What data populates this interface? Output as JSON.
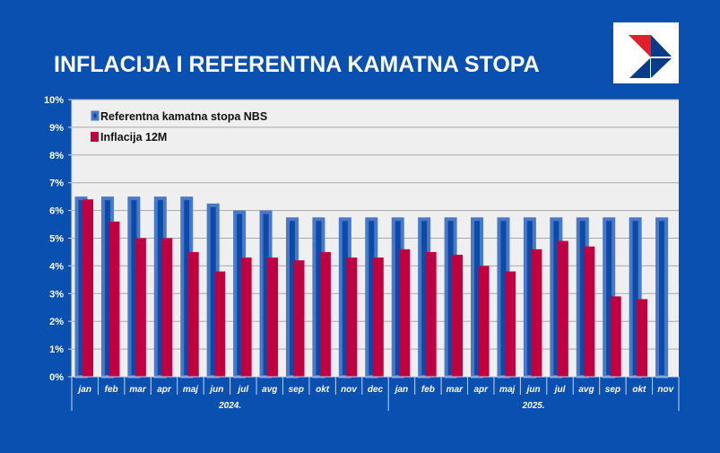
{
  "title": "INFLACIJA I REFERENTNA KAMATNA STOPA",
  "logo": "NBS logo",
  "chart_data": {
    "type": "bar",
    "title": "INFLACIJA I REFERENTNA KAMATNA STOPA",
    "categories": [
      "jan",
      "feb",
      "mar",
      "apr",
      "maj",
      "jun",
      "jul",
      "avg",
      "sep",
      "okt",
      "nov",
      "dec",
      "jan",
      "feb",
      "mar",
      "apr",
      "maj",
      "jun",
      "jul",
      "avg",
      "sep",
      "okt",
      "nov"
    ],
    "groups": [
      {
        "label": "2024.",
        "count": 12
      },
      {
        "label": "2025.",
        "count": 11
      }
    ],
    "series": [
      {
        "name": "Referentna kamatna stopa NBS",
        "color": "#4a78c8",
        "fill": "#0a4aa8",
        "values": [
          6.5,
          6.5,
          6.5,
          6.5,
          6.5,
          6.25,
          6.0,
          6.0,
          5.75,
          5.75,
          5.75,
          5.75,
          5.75,
          5.75,
          5.75,
          5.75,
          5.75,
          5.75,
          5.75,
          5.75,
          5.75,
          5.75,
          5.75
        ]
      },
      {
        "name": "Inflacija 12M",
        "color": "#c00040",
        "values": [
          6.4,
          5.6,
          5.0,
          5.0,
          4.5,
          3.8,
          4.3,
          4.3,
          4.2,
          4.5,
          4.3,
          4.3,
          4.6,
          4.5,
          4.4,
          4.0,
          3.8,
          4.6,
          4.9,
          4.7,
          2.9,
          2.8,
          null
        ]
      }
    ],
    "ylim": [
      0,
      10
    ],
    "yticks": [
      "0%",
      "1%",
      "2%",
      "3%",
      "4%",
      "5%",
      "6%",
      "7%",
      "8%",
      "9%",
      "10%"
    ],
    "grid": true,
    "legend": "top-left",
    "plot_bg": "#efefef"
  }
}
